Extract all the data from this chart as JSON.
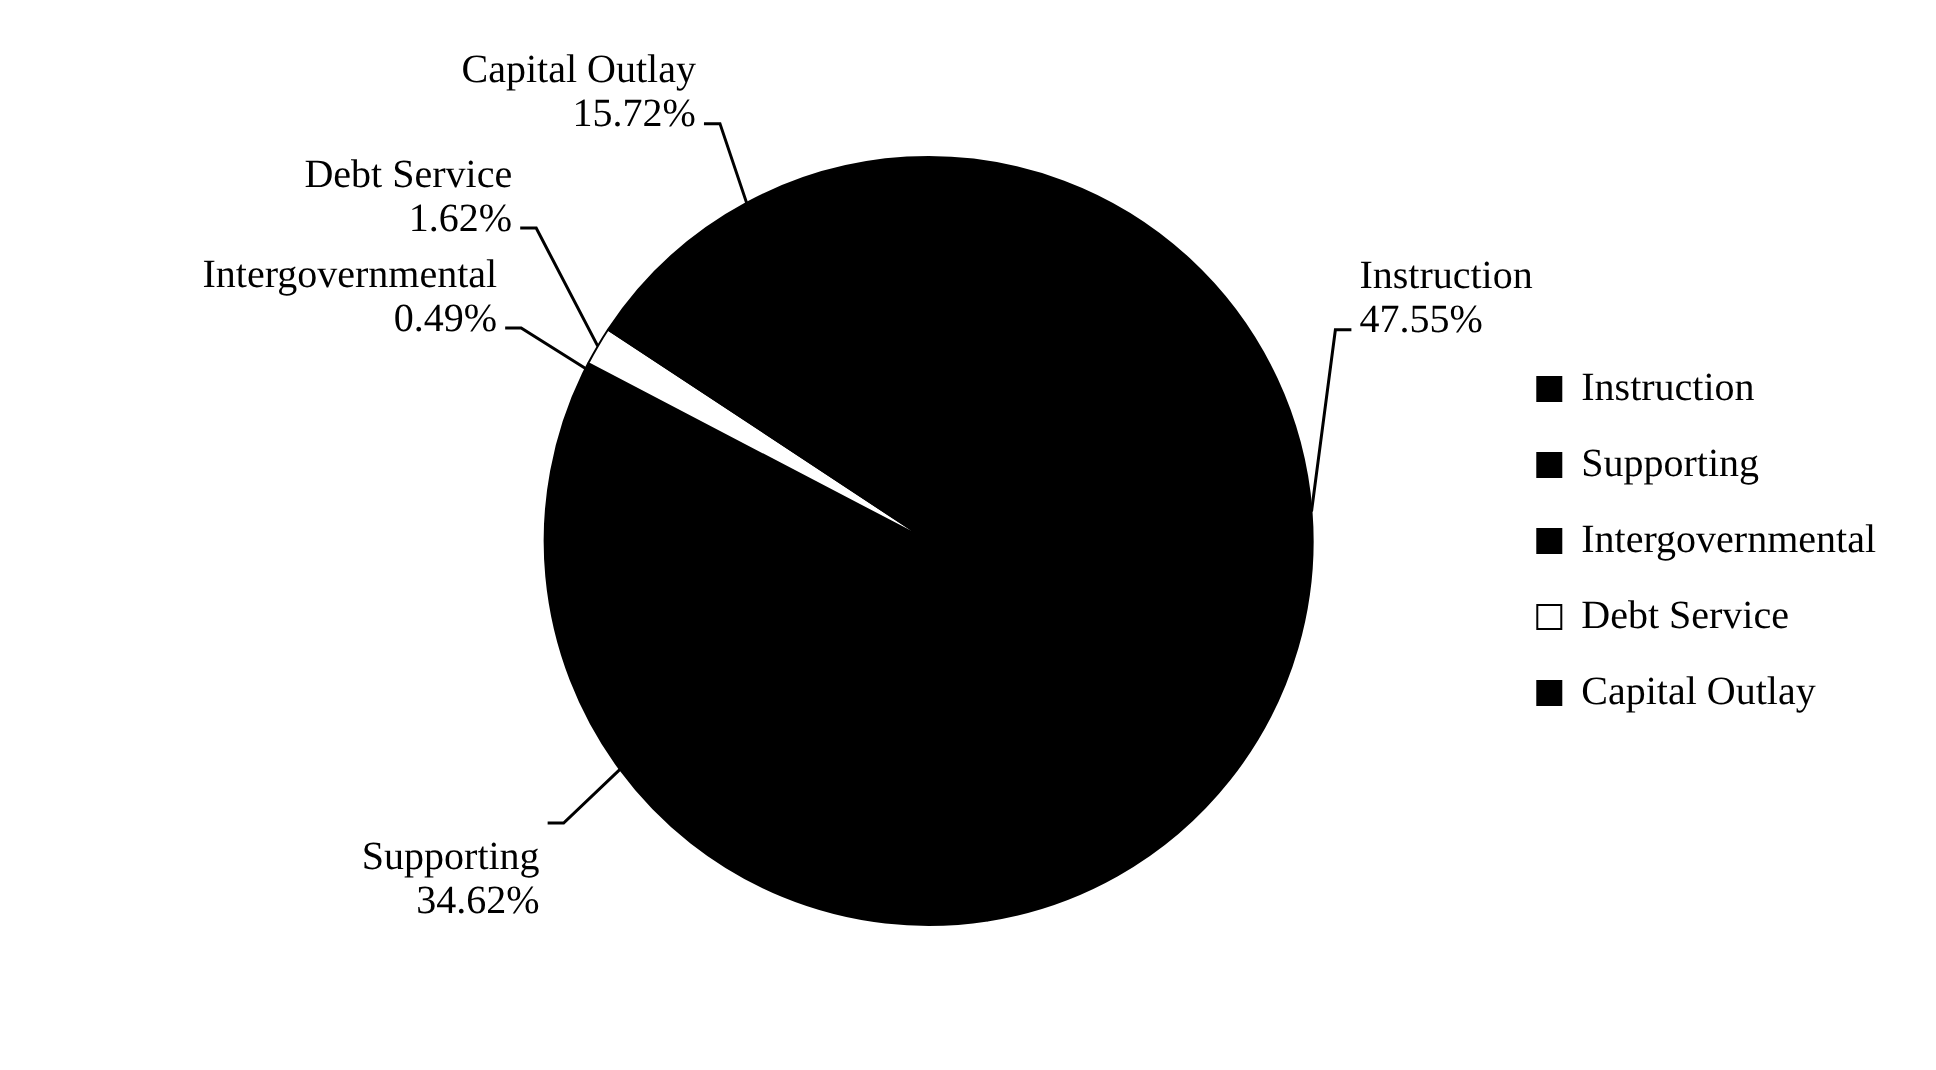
{
  "chart_data": {
    "type": "pie",
    "categories": [
      "Instruction",
      "Supporting",
      "Intergovernmental",
      "Debt Service",
      "Capital Outlay"
    ],
    "values": [
      47.55,
      34.62,
      0.49,
      1.62,
      15.72
    ],
    "value_labels": [
      "47.55%",
      "34.62%",
      "0.49%",
      "1.62%",
      "15.72%"
    ],
    "colors": [
      "#000000",
      "#000000",
      "#000000",
      "#ffffff",
      "#000000"
    ],
    "legend": "right"
  }
}
